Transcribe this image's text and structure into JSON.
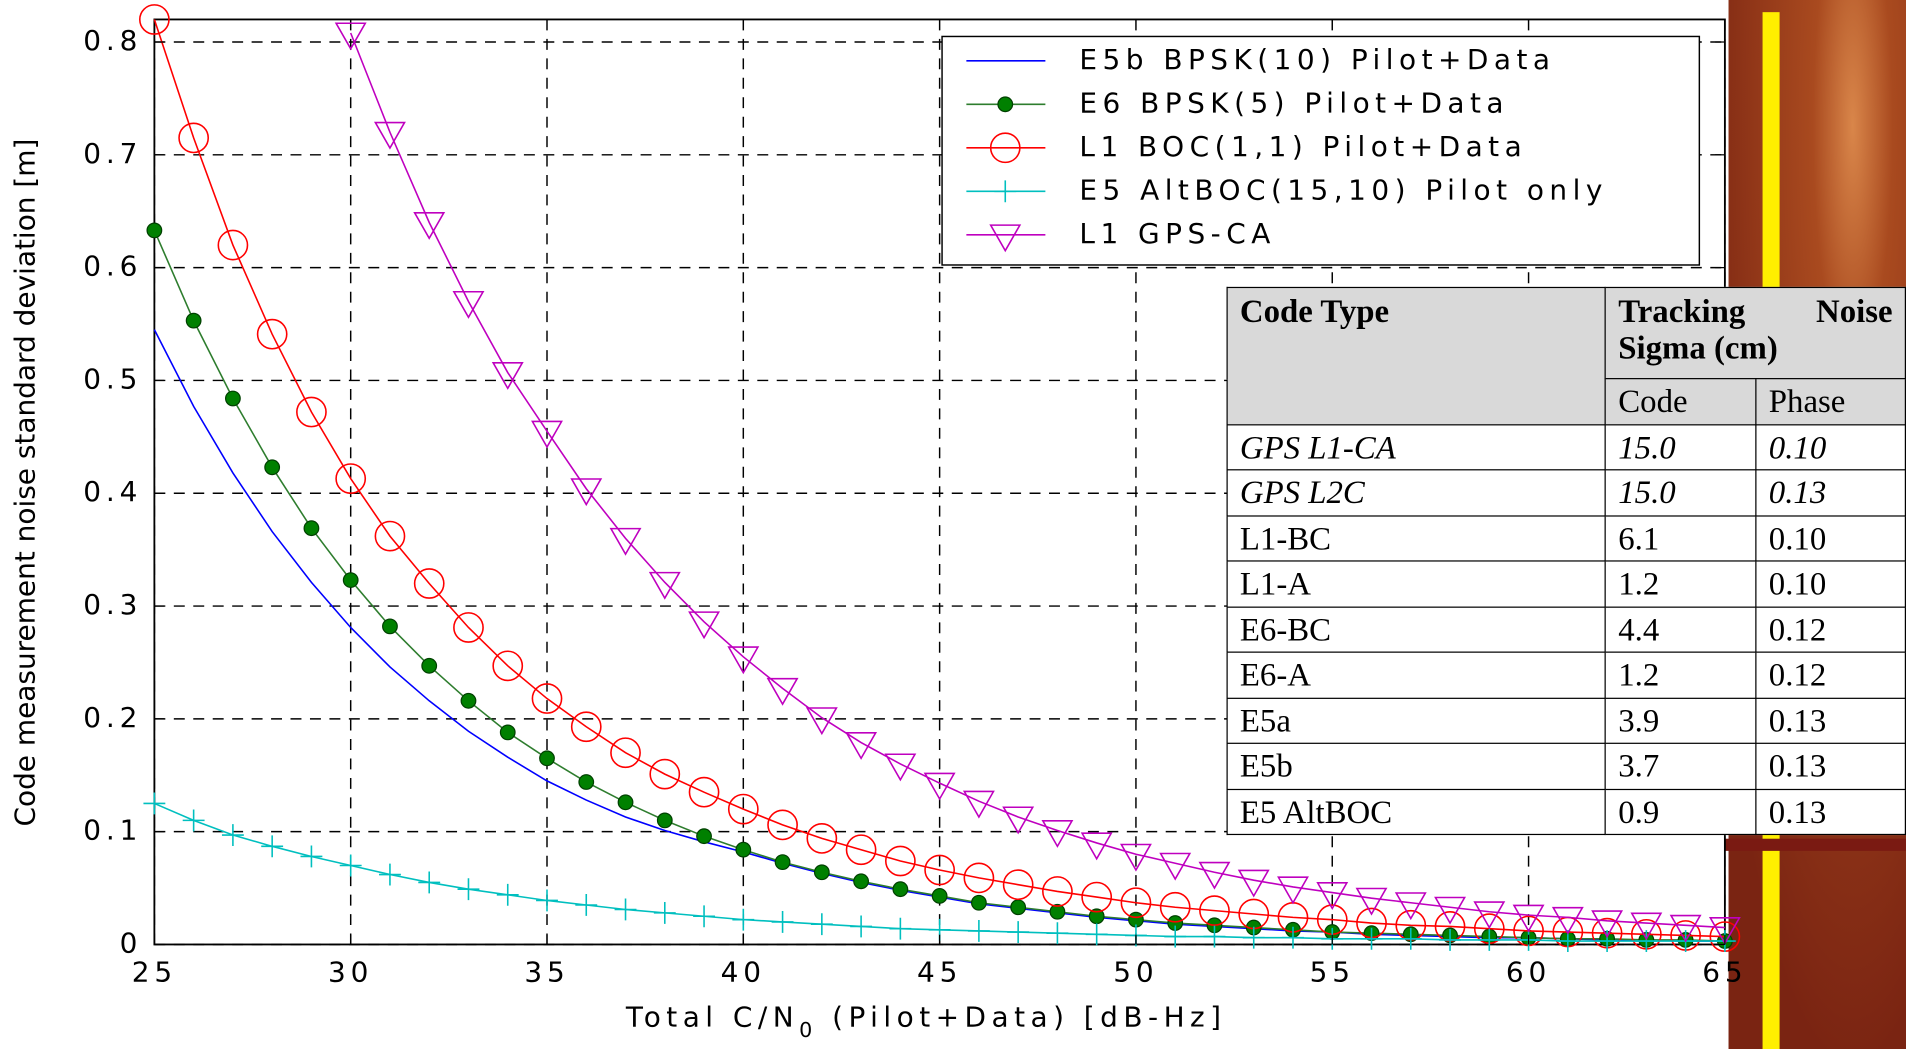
{
  "chart_data": {
    "type": "line",
    "ylabel": "Code measurement noise standard deviation [m]",
    "xlabel_parts": [
      "Total C/N",
      "0",
      " (Pilot+Data) [dB-Hz]"
    ],
    "x": [
      25,
      26,
      27,
      28,
      29,
      30,
      31,
      32,
      33,
      34,
      35,
      36,
      37,
      38,
      39,
      40,
      41,
      42,
      43,
      44,
      45,
      46,
      47,
      48,
      49,
      50,
      51,
      52,
      53,
      54,
      55,
      56,
      57,
      58,
      59,
      60,
      61,
      62,
      63,
      64,
      65
    ],
    "xlim": [
      25,
      65
    ],
    "xticks": [
      25,
      30,
      35,
      40,
      45,
      50,
      55,
      60,
      65
    ],
    "ylim": [
      0,
      0.82
    ],
    "yticks": [
      0,
      0.1,
      0.2,
      0.3,
      0.4,
      0.5,
      0.6,
      0.7,
      0.8
    ],
    "grid": true,
    "legend": "upper right",
    "series": [
      {
        "name": "E5b BPSK(10) Pilot+Data",
        "color": "#0000ff",
        "marker": "none",
        "values": [
          0.545,
          0.477,
          0.418,
          0.366,
          0.321,
          0.281,
          0.246,
          0.216,
          0.189,
          0.166,
          0.145,
          0.128,
          0.113,
          0.101,
          0.091,
          0.082,
          0.072,
          0.063,
          0.055,
          0.048,
          0.042,
          0.036,
          0.032,
          0.028,
          0.024,
          0.021,
          0.018,
          0.016,
          0.014,
          0.012,
          0.011,
          0.009,
          0.008,
          0.007,
          0.006,
          0.006,
          0.005,
          0.004,
          0.004,
          0.003,
          0.003
        ]
      },
      {
        "name": "E6 BPSK(5) Pilot+Data",
        "color": "#008000",
        "marker": "dot",
        "values": [
          0.633,
          0.553,
          0.484,
          0.423,
          0.369,
          0.323,
          0.282,
          0.247,
          0.216,
          0.188,
          0.165,
          0.144,
          0.126,
          0.11,
          0.096,
          0.084,
          0.073,
          0.064,
          0.056,
          0.049,
          0.043,
          0.037,
          0.033,
          0.029,
          0.025,
          0.022,
          0.019,
          0.017,
          0.015,
          0.013,
          0.011,
          0.01,
          0.009,
          0.008,
          0.007,
          0.006,
          0.005,
          0.005,
          0.004,
          0.004,
          0.003
        ]
      },
      {
        "name": "L1 BOC(1,1) Pilot+Data",
        "color": "#ff0000",
        "marker": "circle",
        "values": [
          0.82,
          0.715,
          0.62,
          0.541,
          0.472,
          0.413,
          0.362,
          0.32,
          0.281,
          0.247,
          0.218,
          0.193,
          0.17,
          0.151,
          0.135,
          0.12,
          0.106,
          0.094,
          0.084,
          0.074,
          0.066,
          0.059,
          0.053,
          0.047,
          0.042,
          0.037,
          0.033,
          0.03,
          0.027,
          0.024,
          0.022,
          0.019,
          0.017,
          0.016,
          0.014,
          0.012,
          0.011,
          0.01,
          0.009,
          0.008,
          0.007
        ]
      },
      {
        "name": "E5 AltBOC(15,10) Pilot only",
        "color": "#00bfbf",
        "marker": "plus",
        "values": [
          0.125,
          0.11,
          0.097,
          0.087,
          0.078,
          0.07,
          0.062,
          0.055,
          0.049,
          0.044,
          0.039,
          0.035,
          0.031,
          0.028,
          0.025,
          0.022,
          0.02,
          0.018,
          0.016,
          0.014,
          0.013,
          0.012,
          0.011,
          0.01,
          0.009,
          0.008,
          0.007,
          0.007,
          0.006,
          0.006,
          0.005,
          0.005,
          0.005,
          0.004,
          0.004,
          0.004,
          0.003,
          0.003,
          0.003,
          0.003,
          0.003
        ]
      },
      {
        "name": "L1 GPS-CA",
        "color": "#bf00bf",
        "marker": "triangle-down",
        "values": [
          null,
          null,
          null,
          null,
          null,
          0.808,
          0.72,
          0.64,
          0.57,
          0.507,
          0.455,
          0.404,
          0.36,
          0.321,
          0.286,
          0.255,
          0.227,
          0.201,
          0.179,
          0.16,
          0.143,
          0.127,
          0.113,
          0.101,
          0.09,
          0.08,
          0.072,
          0.064,
          0.057,
          0.051,
          0.046,
          0.041,
          0.037,
          0.033,
          0.029,
          0.026,
          0.024,
          0.021,
          0.019,
          0.017,
          0.015
        ]
      }
    ]
  },
  "table": {
    "header": [
      "Code Type",
      "Tracking Noise Sigma (cm)"
    ],
    "subheader": [
      "Code",
      "Phase"
    ],
    "rows": [
      [
        "GPS L1-CA",
        "15.0",
        "0.10"
      ],
      [
        "GPS L2C",
        "15.0",
        "0.13"
      ],
      [
        "L1-BC",
        "6.1",
        "0.10"
      ],
      [
        "L1-A",
        "1.2",
        "0.10"
      ],
      [
        "E6-BC",
        "4.4",
        "0.12"
      ],
      [
        "E6-A",
        "1.2",
        "0.12"
      ],
      [
        "E5a",
        "3.9",
        "0.13"
      ],
      [
        "E5b",
        "3.7",
        "0.13"
      ],
      [
        "E5 AltBOC",
        "0.9",
        "0.13"
      ]
    ],
    "italic_rows": [
      0,
      1
    ]
  }
}
